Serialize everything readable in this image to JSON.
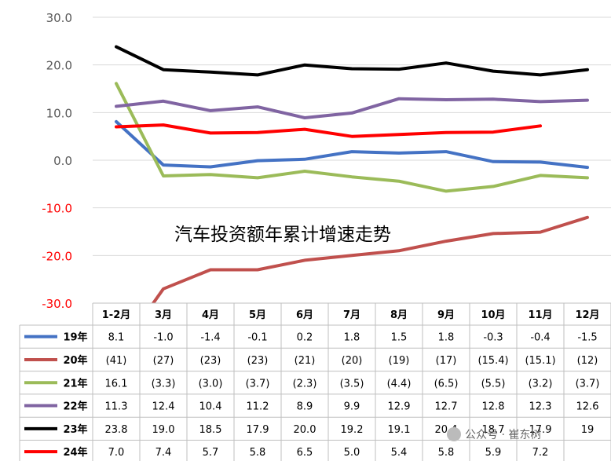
{
  "chart_data": {
    "type": "line",
    "title": "汽车投资额年累计增速走势",
    "categories": [
      "1-2月",
      "3月",
      "4月",
      "5月",
      "6月",
      "7月",
      "8月",
      "9月",
      "10月",
      "11月",
      "12月"
    ],
    "y_ticks": [
      "30.0",
      "20.0",
      "10.0",
      "0.0",
      "-10.0",
      "-20.0",
      "-30.0"
    ],
    "ylim": [
      -30,
      30
    ],
    "series": [
      {
        "name": "19年",
        "color": "#4472c4",
        "values": [
          8.1,
          -1.0,
          -1.4,
          -0.1,
          0.2,
          1.8,
          1.5,
          1.8,
          -0.3,
          -0.4,
          -1.5
        ],
        "labels": [
          "8.1",
          "-1.0",
          "-1.4",
          "-0.1",
          "0.2",
          "1.8",
          "1.5",
          "1.8",
          "-0.3",
          "-0.4",
          "-1.5"
        ]
      },
      {
        "name": "20年",
        "color": "#c0504d",
        "values": [
          -41,
          -27,
          -23,
          -23,
          -21,
          -20,
          -19,
          -17,
          -15.4,
          -15.1,
          -12
        ],
        "labels": [
          "(41)",
          "(27)",
          "(23)",
          "(23)",
          "(21)",
          "(20)",
          "(19)",
          "(17)",
          "(15.4)",
          "(15.1)",
          "(12)"
        ]
      },
      {
        "name": "21年",
        "color": "#9bbb59",
        "values": [
          16.1,
          -3.3,
          -3.0,
          -3.7,
          -2.3,
          -3.5,
          -4.4,
          -6.5,
          -5.5,
          -3.2,
          -3.7
        ],
        "labels": [
          "16.1",
          "(3.3)",
          "(3.0)",
          "(3.7)",
          "(2.3)",
          "(3.5)",
          "(4.4)",
          "(6.5)",
          "(5.5)",
          "(3.2)",
          "(3.7)"
        ]
      },
      {
        "name": "22年",
        "color": "#8064a2",
        "values": [
          11.3,
          12.4,
          10.4,
          11.2,
          8.9,
          9.9,
          12.9,
          12.7,
          12.8,
          12.3,
          12.6
        ],
        "labels": [
          "11.3",
          "12.4",
          "10.4",
          "11.2",
          "8.9",
          "9.9",
          "12.9",
          "12.7",
          "12.8",
          "12.3",
          "12.6"
        ]
      },
      {
        "name": "23年",
        "color": "#000000",
        "values": [
          23.8,
          19.0,
          18.5,
          17.9,
          20.0,
          19.2,
          19.1,
          20.4,
          18.7,
          17.9,
          19
        ],
        "labels": [
          "23.8",
          "19.0",
          "18.5",
          "17.9",
          "20.0",
          "19.2",
          "19.1",
          "20.4",
          "18.7",
          "17.9",
          "19"
        ]
      },
      {
        "name": "24年",
        "color": "#ff0000",
        "values": [
          7.0,
          7.4,
          5.7,
          5.8,
          6.5,
          5.0,
          5.4,
          5.8,
          5.9,
          7.2,
          null
        ],
        "labels": [
          "7.0",
          "7.4",
          "5.7",
          "5.8",
          "6.5",
          "5.0",
          "5.4",
          "5.8",
          "5.9",
          "7.2",
          ""
        ]
      }
    ]
  },
  "watermark": "公众号 · 崔东树"
}
